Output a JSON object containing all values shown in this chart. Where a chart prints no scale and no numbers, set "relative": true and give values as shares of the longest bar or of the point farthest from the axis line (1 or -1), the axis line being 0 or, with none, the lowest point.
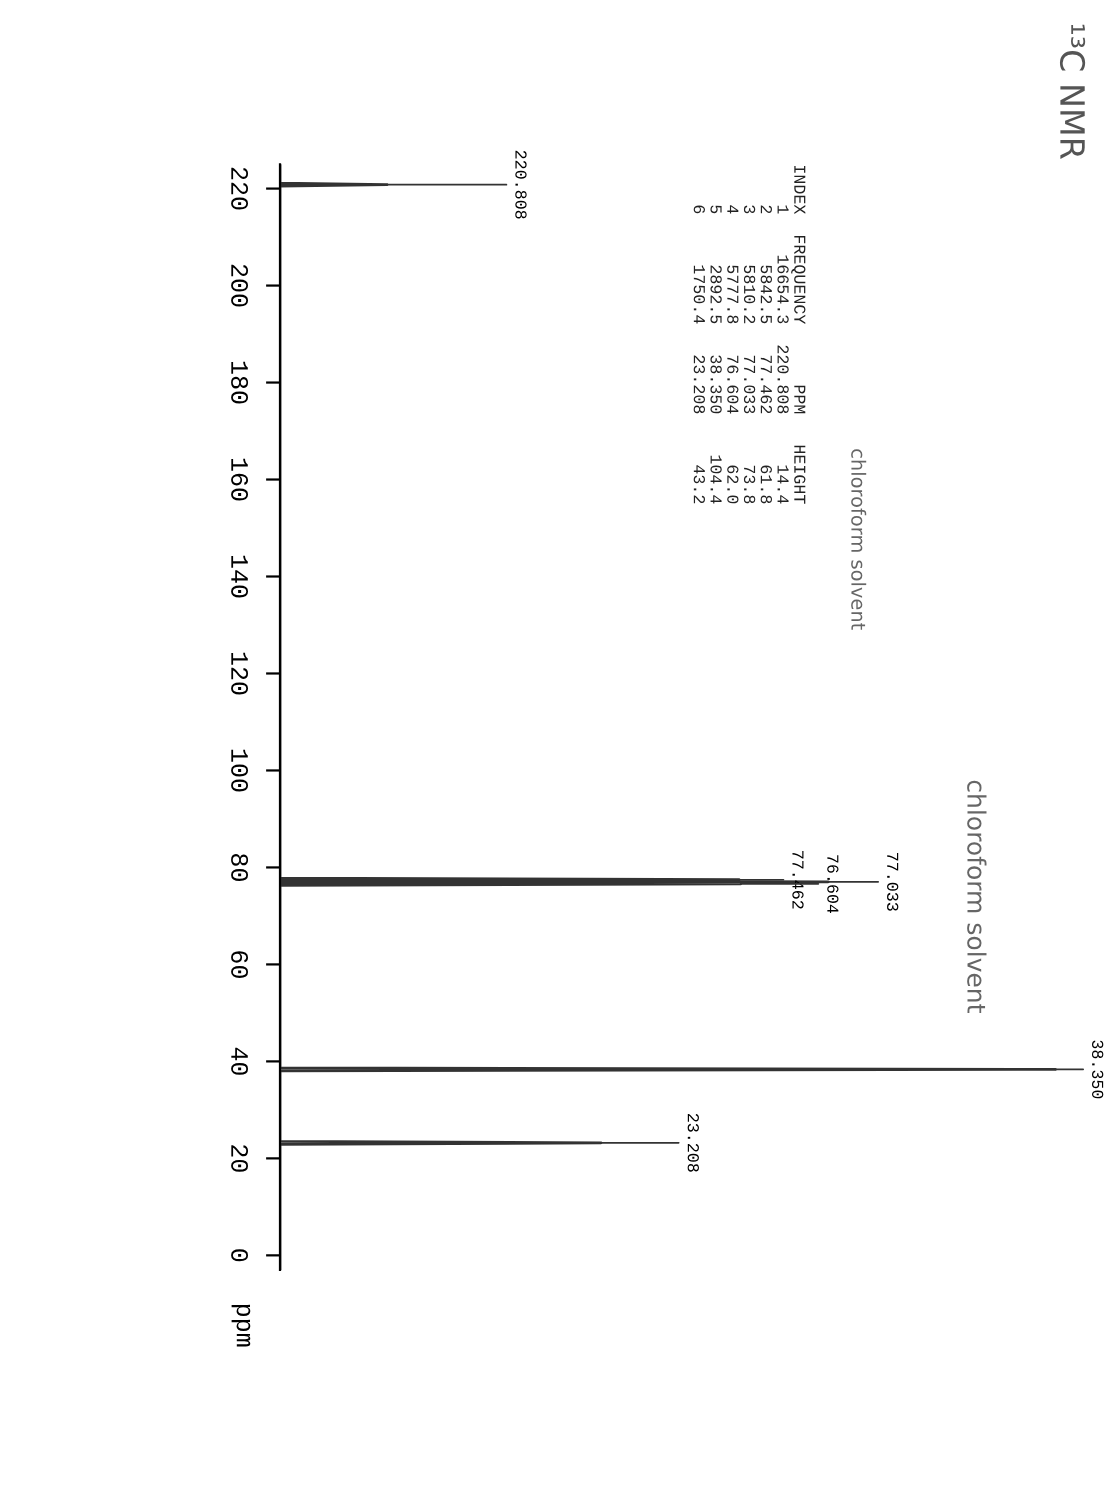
{
  "chart_data": {
    "type": "line",
    "orientation": "horizontal",
    "relative": true,
    "title": "¹³C NMR",
    "ylabel": "ppm",
    "x": [
      225,
      221.1,
      220.808,
      220.5,
      77.8,
      77.462,
      77.25,
      77.033,
      76.82,
      76.604,
      76.3,
      38.65,
      38.35,
      38.05,
      23.5,
      23.208,
      22.9,
      -3
    ],
    "values": [
      0,
      0,
      0.138,
      0,
      0,
      0.592,
      0,
      0.707,
      0,
      0.594,
      0,
      0,
      1,
      0,
      0,
      0.414,
      0,
      0
    ],
    "color": "#333333",
    "ylim": [
      -3,
      225
    ],
    "yticks": [
      0,
      20,
      40,
      60,
      80,
      100,
      120,
      140,
      160,
      180,
      200,
      220
    ],
    "grid": false,
    "legend": false,
    "marker": "none",
    "line_style": "solid",
    "annotations": [
      "220.808",
      "77.462",
      "77.033",
      "76.604",
      "38.350",
      "23.208",
      "INDEX  FREQUENCY      PPM   HEIGHT\n    1    16654.3  220.808     14.4\n    2     5842.5   77.462     61.8\n    3     5810.2   77.033     73.8\n    4     5777.8   76.604     62.0\n    5     2892.5   38.350    104.4\n    6     1750.4   23.208     43.2",
      "chloroform solvent",
      "chloroform solvent"
    ]
  }
}
